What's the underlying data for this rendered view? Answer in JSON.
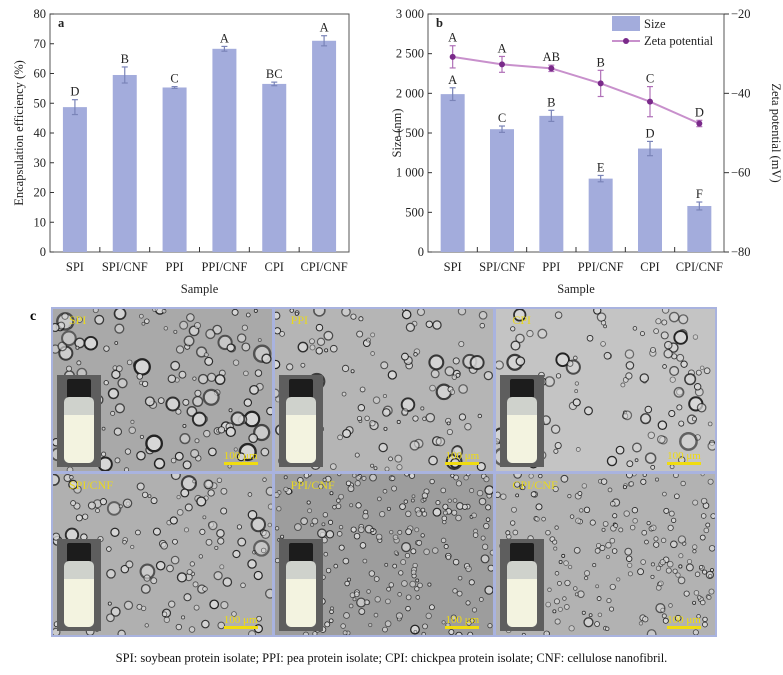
{
  "chart_data": [
    {
      "type": "bar",
      "panel_label": "a",
      "categories": [
        "SPI",
        "SPI/CNF",
        "PPI",
        "PPI/CNF",
        "CPI",
        "CPI/CNF"
      ],
      "values": [
        48.7,
        59.5,
        55.3,
        68.3,
        56.5,
        71.0
      ],
      "errors": [
        2.5,
        2.7,
        0.3,
        0.8,
        0.6,
        1.7
      ],
      "significance_letters": [
        "D",
        "B",
        "C",
        "A",
        "BC",
        "A"
      ],
      "xlabel": "Sample",
      "ylabel": "Encapsulation efficiency (%)",
      "ylim": [
        0,
        80
      ],
      "yticks": [
        0,
        10,
        20,
        30,
        40,
        50,
        60,
        70,
        80
      ],
      "bar_color": "#a3acdc"
    },
    {
      "type": "bar+line",
      "panel_label": "b",
      "categories": [
        "SPI",
        "SPI/CNF",
        "PPI",
        "PPI/CNF",
        "CPI",
        "CPI/CNF"
      ],
      "series": [
        {
          "name": "Size",
          "axis": "left",
          "type": "bar",
          "values": [
            1990,
            1548,
            1716,
            925,
            1304,
            580
          ],
          "errors": [
            80,
            40,
            70,
            40,
            90,
            50
          ],
          "letters": [
            "A",
            "C",
            "B",
            "E",
            "D",
            "F"
          ],
          "color": "#a3acdc"
        },
        {
          "name": "Zeta potential",
          "axis": "right",
          "type": "line",
          "values": [
            -30.8,
            -32.7,
            -33.7,
            -37.5,
            -42.1,
            -47.6
          ],
          "errors": [
            2.8,
            2.0,
            0.8,
            3.3,
            3.8,
            0.8
          ],
          "letters": [
            "A",
            "A",
            "AB",
            "B",
            "C",
            "D"
          ],
          "color": "#7a2a8a"
        }
      ],
      "xlabel": "Sample",
      "ylabel": "Size (nm)",
      "ylabel_right": "Zeta potential (mV)",
      "ylim": [
        0,
        3000
      ],
      "ylim_right": [
        -80,
        -20
      ],
      "yticks": [
        "0",
        "500",
        "1 000",
        "1 500",
        "2 000",
        "2 500",
        "3 000"
      ],
      "yticks_right": [
        "−80",
        "−60",
        "−40",
        "−20"
      ],
      "legend": "top-right"
    }
  ],
  "panel_c": {
    "label": "c",
    "panels": [
      {
        "label": "SPI",
        "scale": "100 μm"
      },
      {
        "label": "PPI",
        "scale": "100 μm"
      },
      {
        "label": "CPI",
        "scale": "100 μm"
      },
      {
        "label": "SPI/CNF",
        "scale": "100 μm"
      },
      {
        "label": "PPI/CNF",
        "scale": "100 μm"
      },
      {
        "label": "CPI/CNF",
        "scale": "100 μm"
      }
    ]
  },
  "caption": "SPI: soybean protein isolate; PPI: pea protein isolate; CPI: chickpea protein isolate; CNF: cellulose nanofibril."
}
